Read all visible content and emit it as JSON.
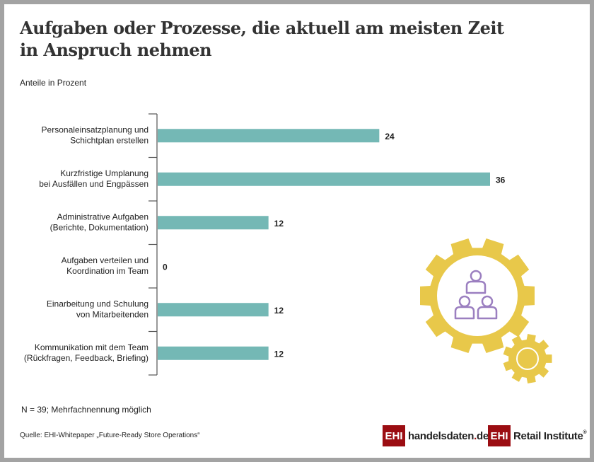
{
  "title_line1": "Aufgaben oder Prozesse, die aktuell am meisten Zeit",
  "title_line2": "in Anspruch nehmen",
  "subtitle": "Anteile in Prozent",
  "note": "N = 39; Mehrfachnennung möglich",
  "source": "Quelle: EHI-Whitepaper „Future-Ready Store Operations“",
  "logos": {
    "logo1_box": "EHI",
    "logo1_text_a": "handelsdaten",
    "logo1_text_dot": ".",
    "logo1_text_b": "de",
    "logo2_box": "EHI",
    "logo2_text": "Retail Institute",
    "logo2_reg": "®"
  },
  "colors": {
    "bar": "#74b8b5",
    "gear": "#e8c84a",
    "people": "#9b7fc0",
    "brand": "#9b0d12"
  },
  "illustration_icons": [
    "gear-icon",
    "people-hierarchy-icon"
  ],
  "chart_data": {
    "type": "bar",
    "orientation": "horizontal",
    "categories": [
      [
        "Personaleinsatzplanung und",
        "Schichtplan erstellen"
      ],
      [
        "Kurzfristige Umplanung",
        "bei Ausfällen und Engpässen"
      ],
      [
        "Administrative Aufgaben",
        "(Berichte, Dokumentation)"
      ],
      [
        "Aufgaben verteilen und",
        "Koordination im Team"
      ],
      [
        "Einarbeitung und Schulung",
        "von Mitarbeitenden"
      ],
      [
        "Kommunikation mit dem Team",
        "(Rückfragen, Feedback, Briefing)"
      ]
    ],
    "values": [
      24,
      36,
      12,
      0,
      12,
      12
    ],
    "unit": "Prozent",
    "xlim": [
      0,
      36
    ],
    "grid": false,
    "data_labels": true
  }
}
